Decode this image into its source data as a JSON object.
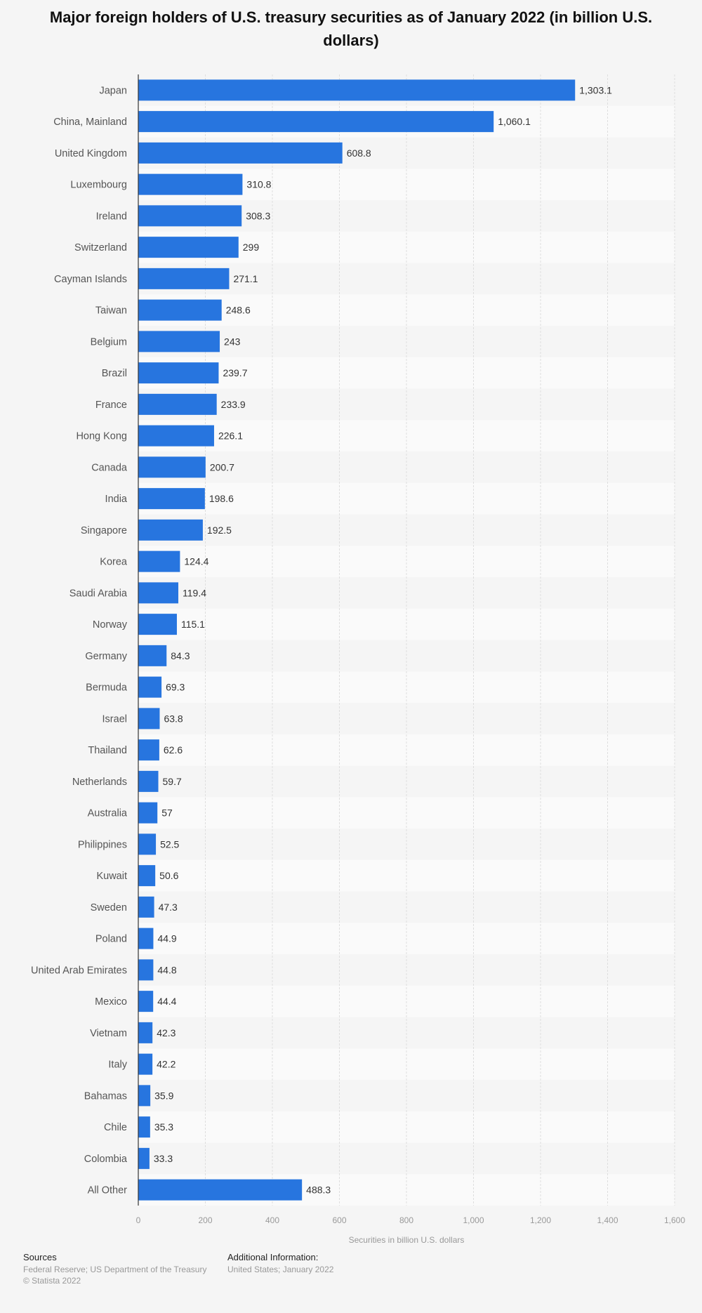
{
  "chart_data": {
    "type": "bar",
    "orientation": "horizontal",
    "title": "Major foreign holders of U.S. treasury securities as of January 2022 (in billion U.S. dollars)",
    "xlabel": "Securities in billion U.S. dollars",
    "xlim": [
      0,
      1600
    ],
    "ticks": [
      0,
      200,
      400,
      600,
      800,
      1000,
      1200,
      1400,
      1600
    ],
    "tick_labels": [
      "0",
      "200",
      "400",
      "600",
      "800",
      "1,000",
      "1,200",
      "1,400",
      "1,600"
    ],
    "bar_color": "#2775df",
    "grid": true,
    "categories": [
      "Japan",
      "China, Mainland",
      "United Kingdom",
      "Luxembourg",
      "Ireland",
      "Switzerland",
      "Cayman Islands",
      "Taiwan",
      "Belgium",
      "Brazil",
      "France",
      "Hong Kong",
      "Canada",
      "India",
      "Singapore",
      "Korea",
      "Saudi Arabia",
      "Norway",
      "Germany",
      "Bermuda",
      "Israel",
      "Thailand",
      "Netherlands",
      "Australia",
      "Philippines",
      "Kuwait",
      "Sweden",
      "Poland",
      "United Arab Emirates",
      "Mexico",
      "Vietnam",
      "Italy",
      "Bahamas",
      "Chile",
      "Colombia",
      "All Other"
    ],
    "values": [
      1303.1,
      1060.1,
      608.8,
      310.8,
      308.3,
      299,
      271.1,
      248.6,
      243,
      239.7,
      233.9,
      226.1,
      200.7,
      198.6,
      192.5,
      124.4,
      119.4,
      115.1,
      84.3,
      69.3,
      63.8,
      62.6,
      59.7,
      57,
      52.5,
      50.6,
      47.3,
      44.9,
      44.8,
      44.4,
      42.3,
      42.2,
      35.9,
      35.3,
      33.3,
      488.3
    ],
    "value_labels": [
      "1,303.1",
      "1,060.1",
      "608.8",
      "310.8",
      "308.3",
      "299",
      "271.1",
      "248.6",
      "243",
      "239.7",
      "233.9",
      "226.1",
      "200.7",
      "198.6",
      "192.5",
      "124.4",
      "119.4",
      "115.1",
      "84.3",
      "69.3",
      "63.8",
      "62.6",
      "59.7",
      "57",
      "52.5",
      "50.6",
      "47.3",
      "44.9",
      "44.8",
      "44.4",
      "42.3",
      "42.2",
      "35.9",
      "35.3",
      "33.3",
      "488.3"
    ]
  },
  "footer": {
    "sources_heading": "Sources",
    "sources_line1": "Federal Reserve; US Department of the Treasury",
    "sources_line2": "© Statista 2022",
    "additional_heading": "Additional Information:",
    "additional_text": "United States; January 2022"
  }
}
